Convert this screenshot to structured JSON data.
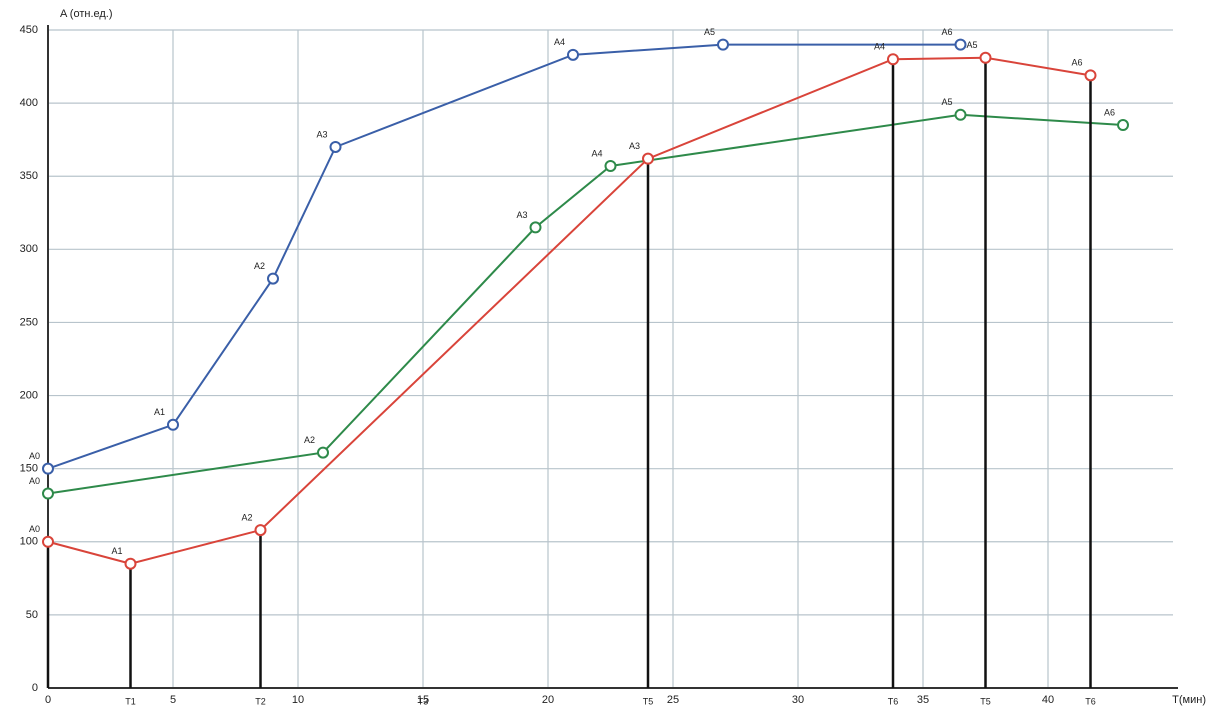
{
  "chart_data": {
    "type": "line",
    "y_label": "A (отн.ед.)",
    "x_label": "T(мин)",
    "xlim": [
      0,
      45
    ],
    "xticks": [
      0,
      5,
      10,
      15,
      20,
      25,
      30,
      35,
      40
    ],
    "ylim": [
      0,
      450
    ],
    "yticks": [
      0,
      50,
      100,
      150,
      200,
      250,
      300,
      350,
      400,
      450
    ],
    "grid": true,
    "drop_lines_series": 2,
    "x_markers": [
      {
        "value": 3.3,
        "label": "T1"
      },
      {
        "value": 8.5,
        "label": "T2"
      },
      {
        "value": 15,
        "label": "T3"
      },
      {
        "value": 24,
        "label": "T5"
      },
      {
        "value": 33.8,
        "label": "T6"
      },
      {
        "value": 37.5,
        "label": "T5"
      },
      {
        "value": 41.7,
        "label": "T6"
      }
    ],
    "series": [
      {
        "name": "blue",
        "color": "#3a5fa8",
        "x": [
          0,
          5,
          9,
          11.5,
          21,
          27,
          36.5
        ],
        "values": [
          150,
          180,
          280,
          370,
          433,
          440,
          440
        ],
        "point_labels": [
          "A0",
          "A1",
          "A2",
          "A3",
          "A4",
          "A5",
          "A6"
        ]
      },
      {
        "name": "green",
        "color": "#2e8a4a",
        "x": [
          0,
          11,
          19.5,
          22.5,
          36.5,
          43
        ],
        "values": [
          133,
          161,
          315,
          357,
          392,
          385
        ],
        "point_labels": [
          "A0",
          "A2",
          "A3",
          "A4",
          "A5",
          "A6"
        ]
      },
      {
        "name": "red",
        "color": "#d9443a",
        "x": [
          0,
          3.3,
          8.5,
          24,
          33.8,
          37.5,
          41.7
        ],
        "values": [
          100,
          85,
          108,
          362,
          430,
          431,
          419
        ],
        "point_labels": [
          "A0",
          "A1",
          "A2",
          "A3",
          "A4",
          "A5",
          "A6"
        ]
      }
    ]
  }
}
